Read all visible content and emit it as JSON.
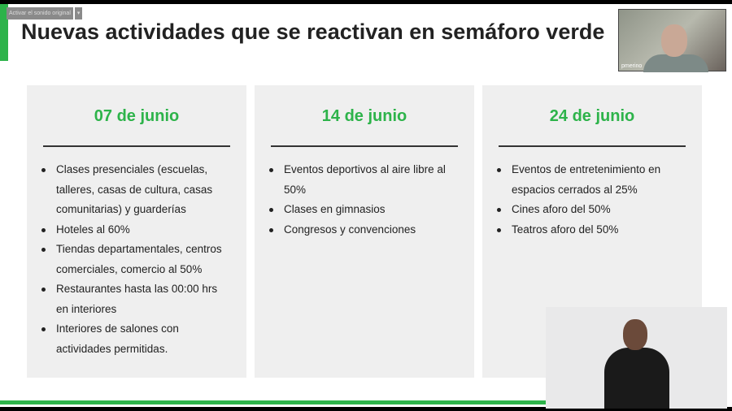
{
  "toolbar": {
    "audio_label": "Activar el sonido original",
    "audio_dropdown": "▾"
  },
  "slide": {
    "title": "Nuevas actividades que se reactivan en semáforo verde",
    "columns": [
      {
        "date": "07 de junio",
        "items": [
          "Clases presenciales (escuelas, talleres, casas de cultura, casas comunitarias) y guarderías",
          "Hoteles al 60%",
          "Tiendas departamentales, centros comerciales, comercio al 50%",
          "Restaurantes hasta las 00:00 hrs en interiores",
          "Interiores de salones con actividades permitidas."
        ]
      },
      {
        "date": "14 de junio",
        "items": [
          "Eventos deportivos al aire libre al 50%",
          "Clases en gimnasios",
          "Congresos y convenciones"
        ]
      },
      {
        "date": "24 de junio",
        "items": [
          "Eventos de entretenimiento en espacios cerrados al 25%",
          "Cines aforo del 50%",
          "Teatros aforo del 50%"
        ]
      }
    ],
    "accent": "#2db34a"
  },
  "participant": {
    "name": "pmerino"
  }
}
